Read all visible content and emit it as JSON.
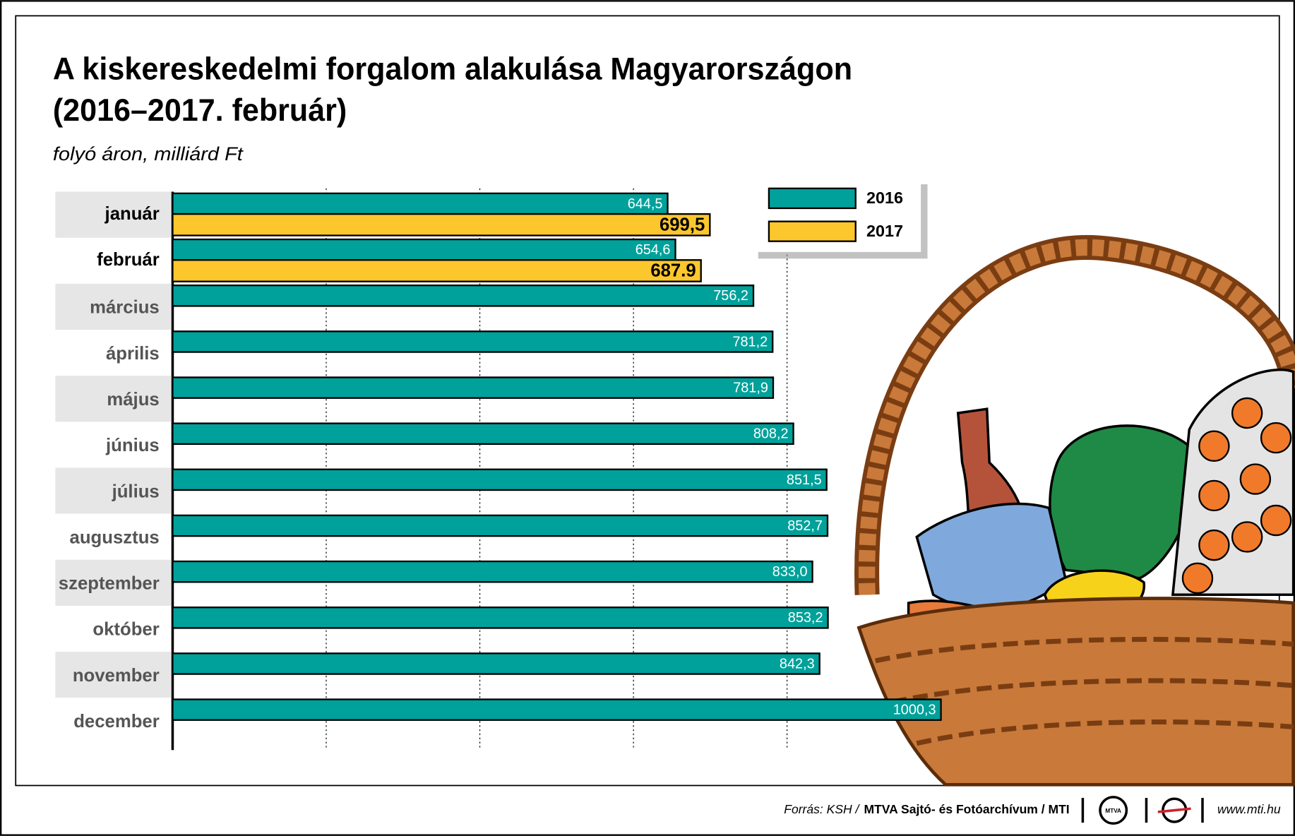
{
  "chart_data": {
    "type": "bar",
    "orientation": "horizontal",
    "title": [
      "A kiskereskedelmi forgalom alakulása Magyarországon",
      "(2016–2017. február)"
    ],
    "subtitle": "folyó áron, milliárd Ft",
    "categories": [
      "január",
      "február",
      "március",
      "április",
      "május",
      "június",
      "július",
      "augusztus",
      "szeptember",
      "október",
      "november",
      "december"
    ],
    "series": [
      {
        "name": "2016",
        "color": "#00a19a",
        "values": [
          644.5,
          654.6,
          756.2,
          781.2,
          781.9,
          808.2,
          851.5,
          852.7,
          833.0,
          853.2,
          842.3,
          1000.3
        ],
        "value_labels": [
          "644,5",
          "654,6",
          "756,2",
          "781,2",
          "781,9",
          "808,2",
          "851,5",
          "852,7",
          "833,0",
          "853,2",
          "842,3",
          "1000,3"
        ]
      },
      {
        "name": "2017",
        "color": "#fcc72c",
        "values": [
          699.5,
          687.9,
          null,
          null,
          null,
          null,
          null,
          null,
          null,
          null,
          null,
          null
        ],
        "value_labels": [
          "699,5",
          "687.9",
          null,
          null,
          null,
          null,
          null,
          null,
          null,
          null,
          null,
          null
        ]
      }
    ],
    "xlim": [
      0,
      1000
    ],
    "xticks": [
      200,
      400,
      600,
      800
    ],
    "grid": true,
    "legend": "upper right",
    "footer": {
      "source": "Forrás: KSH /",
      "credit": "MTVA Sajtó- és Fotóarchívum / MTI",
      "logo": "MTVA",
      "url": "www.mti.hu"
    }
  }
}
